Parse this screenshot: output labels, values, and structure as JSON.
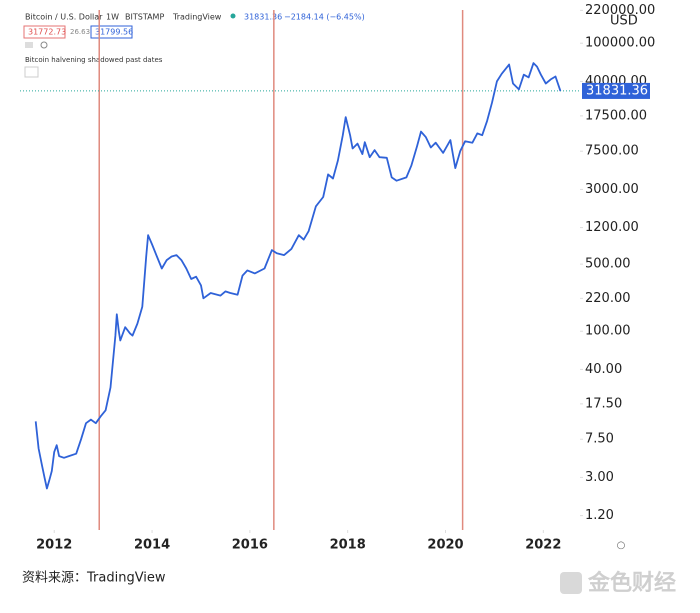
{
  "header": {
    "symbol": "Bitcoin / U.S. Dollar",
    "interval": "1W",
    "exchange": "BITSTAMP",
    "source": "TradingView",
    "price": "31831.36",
    "change": "−2184.14 (−6.45%)",
    "bid": "31772.73",
    "spread": "26.63",
    "ask": "31799.56",
    "indicator": "Bitcoin halvening shadowed past dates"
  },
  "chart_data": {
    "type": "line",
    "currency": "USD",
    "log_scale": true,
    "xlim": [
      2011.3,
      2022.75
    ],
    "xticks": [
      2012,
      2014,
      2016,
      2018,
      2020,
      2022
    ],
    "ylim": [
      0.85,
      250000
    ],
    "yticks": [
      {
        "value": 220000,
        "label": "220000.00"
      },
      {
        "value": 100000,
        "label": "100000.00"
      },
      {
        "value": 40000,
        "label": "40000.00"
      },
      {
        "value": 17500,
        "label": "17500.00"
      },
      {
        "value": 7500,
        "label": "7500.00"
      },
      {
        "value": 3000,
        "label": "3000.00"
      },
      {
        "value": 1200,
        "label": "1200.00"
      },
      {
        "value": 500,
        "label": "500.00"
      },
      {
        "value": 220,
        "label": "220.00"
      },
      {
        "value": 100,
        "label": "100.00"
      },
      {
        "value": 40,
        "label": "40.00"
      },
      {
        "value": 17.5,
        "label": "17.50"
      },
      {
        "value": 7.5,
        "label": "7.50"
      },
      {
        "value": 3,
        "label": "3.00"
      },
      {
        "value": 1.2,
        "label": "1.20"
      }
    ],
    "halvings": [
      2012.92,
      2016.49,
      2020.35
    ],
    "halving_color": "#e08a7e",
    "last_price": 31831.36,
    "series": [
      {
        "name": "Bitcoin / U.S. Dollar",
        "color": "#2f62d8",
        "x": [
          2011.62,
          2011.68,
          2011.75,
          2011.8,
          2011.85,
          2011.9,
          2011.95,
          2012.0,
          2012.05,
          2012.1,
          2012.2,
          2012.3,
          2012.45,
          2012.55,
          2012.65,
          2012.75,
          2012.85,
          2012.95,
          2013.05,
          2013.15,
          2013.25,
          2013.28,
          2013.32,
          2013.35,
          2013.45,
          2013.55,
          2013.6,
          2013.7,
          2013.8,
          2013.88,
          2013.92,
          2014.0,
          2014.1,
          2014.2,
          2014.3,
          2014.4,
          2014.5,
          2014.6,
          2014.7,
          2014.8,
          2014.9,
          2015.0,
          2015.05,
          2015.2,
          2015.4,
          2015.5,
          2015.6,
          2015.75,
          2015.85,
          2015.95,
          2016.1,
          2016.3,
          2016.45,
          2016.55,
          2016.7,
          2016.85,
          2017.0,
          2017.1,
          2017.2,
          2017.35,
          2017.5,
          2017.6,
          2017.7,
          2017.8,
          2017.9,
          2017.96,
          2018.05,
          2018.1,
          2018.2,
          2018.3,
          2018.35,
          2018.45,
          2018.55,
          2018.65,
          2018.8,
          2018.9,
          2019.0,
          2019.2,
          2019.3,
          2019.42,
          2019.5,
          2019.6,
          2019.7,
          2019.8,
          2019.95,
          2020.1,
          2020.2,
          2020.3,
          2020.4,
          2020.55,
          2020.65,
          2020.75,
          2020.85,
          2020.95,
          2021.05,
          2021.15,
          2021.3,
          2021.38,
          2021.5,
          2021.6,
          2021.7,
          2021.8,
          2021.87,
          2021.95,
          2022.05,
          2022.15,
          2022.25,
          2022.35
        ],
        "values": [
          11.5,
          6,
          4,
          3.0,
          2.3,
          2.8,
          3.5,
          5.5,
          6.5,
          5.0,
          4.8,
          5.0,
          5.3,
          7.5,
          11,
          12,
          11,
          13,
          15,
          26,
          90,
          150,
          100,
          80,
          110,
          95,
          90,
          120,
          180,
          600,
          1000,
          800,
          600,
          450,
          550,
          600,
          620,
          550,
          450,
          350,
          370,
          300,
          220,
          250,
          235,
          260,
          250,
          240,
          380,
          430,
          400,
          450,
          700,
          650,
          620,
          720,
          1000,
          900,
          1100,
          2000,
          2500,
          4300,
          3900,
          6000,
          11000,
          17000,
          11000,
          8000,
          9000,
          7000,
          9300,
          6500,
          7700,
          6500,
          6400,
          4000,
          3700,
          4000,
          5300,
          8500,
          12000,
          10500,
          8200,
          9200,
          7200,
          9800,
          5000,
          7500,
          9500,
          9200,
          11500,
          11000,
          15500,
          24000,
          40000,
          48000,
          60000,
          38000,
          33000,
          47000,
          44000,
          62000,
          57000,
          47000,
          38000,
          42000,
          45000,
          31831.36
        ]
      }
    ]
  },
  "footer": {
    "source": "资料来源：TradingView",
    "watermark": "金色财经"
  }
}
